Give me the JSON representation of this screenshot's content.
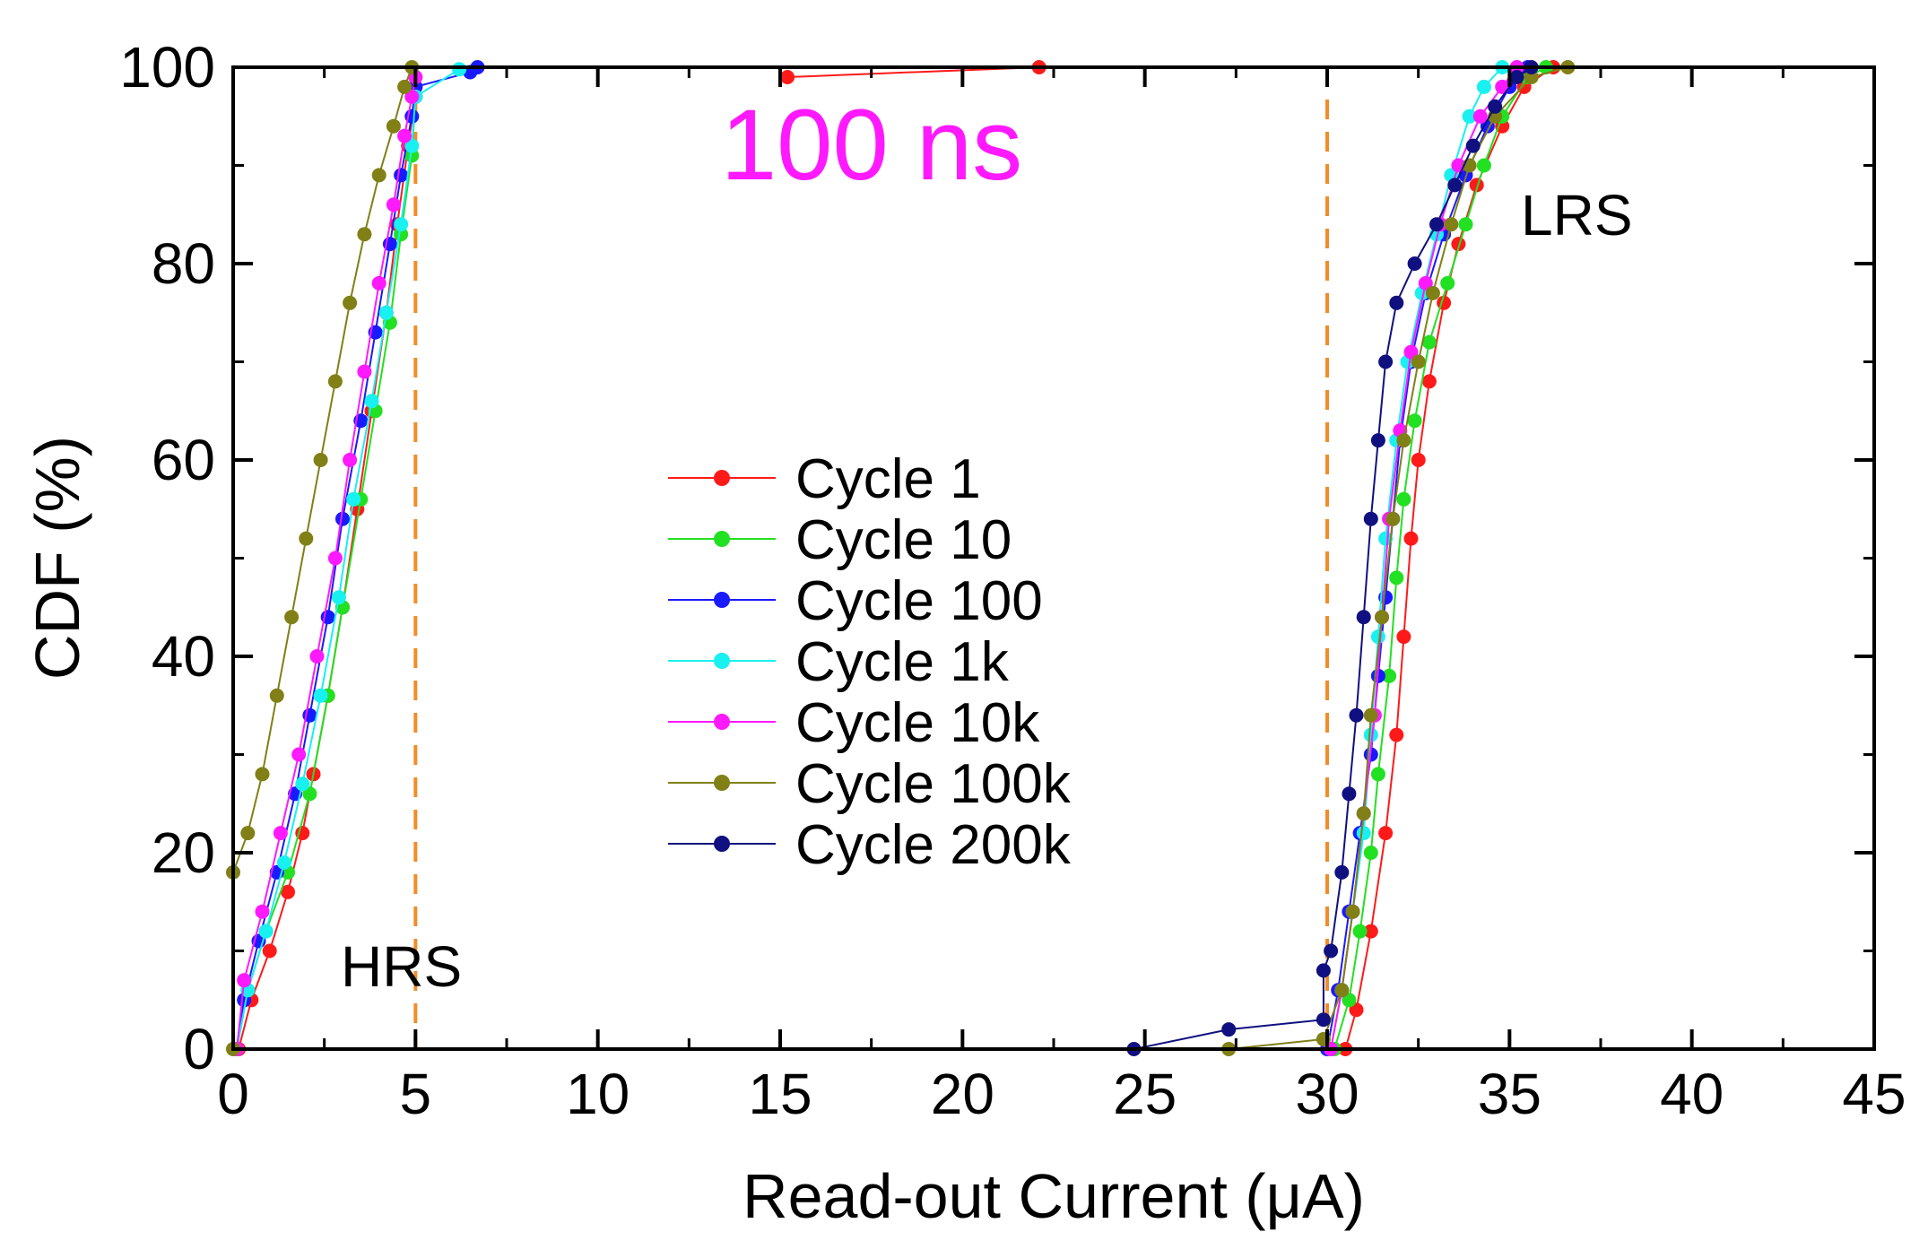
{
  "chart_data": {
    "type": "line",
    "title": "",
    "xlabel": "Read-out Current (μA)",
    "ylabel": "CDF (%)",
    "xlim": [
      0,
      45
    ],
    "ylim": [
      0,
      100
    ],
    "xticks": [
      0,
      5,
      10,
      15,
      20,
      25,
      30,
      35,
      40,
      45
    ],
    "yticks": [
      0,
      20,
      40,
      60,
      80,
      100
    ],
    "xtick_labels": [
      "0",
      "5",
      "10",
      "15",
      "20",
      "25",
      "30",
      "35",
      "40",
      "45"
    ],
    "ytick_labels": [
      "0",
      "20",
      "40",
      "60",
      "80",
      "100"
    ],
    "grid": false,
    "legend_position": "center",
    "annotations": {
      "pulse": "100 ns",
      "hrs": "HRS",
      "lrs": "LRS"
    },
    "reference_lines": [
      {
        "x": 5,
        "style": "dashed",
        "color": "#f28c28"
      },
      {
        "x": 30,
        "style": "dashed",
        "color": "#f28c28"
      }
    ],
    "series": [
      {
        "name": "Cycle 1",
        "color": "#ff1a1a",
        "hrs": [
          [
            0.15,
            0
          ],
          [
            0.5,
            5
          ],
          [
            1.0,
            10
          ],
          [
            1.5,
            16
          ],
          [
            1.9,
            22
          ],
          [
            2.2,
            28
          ],
          [
            2.6,
            36
          ],
          [
            3.0,
            45
          ],
          [
            3.4,
            55
          ],
          [
            3.8,
            65
          ],
          [
            4.2,
            75
          ],
          [
            4.5,
            84
          ],
          [
            4.8,
            92
          ],
          [
            5.0,
            97
          ],
          [
            5.0,
            98
          ]
        ],
        "lrs": [
          [
            15.2,
            99
          ],
          [
            22.1,
            100
          ]
        ],
        "lrs_main": [
          [
            30.5,
            0
          ],
          [
            30.8,
            4
          ],
          [
            31.2,
            12
          ],
          [
            31.6,
            22
          ],
          [
            31.9,
            32
          ],
          [
            32.1,
            42
          ],
          [
            32.3,
            52
          ],
          [
            32.5,
            60
          ],
          [
            32.8,
            68
          ],
          [
            33.2,
            76
          ],
          [
            33.6,
            82
          ],
          [
            34.1,
            88
          ],
          [
            34.8,
            94
          ],
          [
            35.4,
            98
          ],
          [
            36.2,
            100
          ]
        ]
      },
      {
        "name": "Cycle 10",
        "color": "#22e022",
        "hrs": [
          [
            0.1,
            0
          ],
          [
            0.4,
            6
          ],
          [
            0.9,
            12
          ],
          [
            1.5,
            18
          ],
          [
            2.1,
            26
          ],
          [
            2.6,
            36
          ],
          [
            3.0,
            45
          ],
          [
            3.5,
            56
          ],
          [
            3.9,
            65
          ],
          [
            4.3,
            74
          ],
          [
            4.6,
            83
          ],
          [
            4.9,
            91
          ],
          [
            5.0,
            97
          ],
          [
            5.0,
            99
          ]
        ],
        "lrs": [
          [
            30.2,
            0
          ],
          [
            30.6,
            5
          ],
          [
            30.9,
            12
          ],
          [
            31.2,
            20
          ],
          [
            31.4,
            28
          ],
          [
            31.7,
            38
          ],
          [
            31.9,
            48
          ],
          [
            32.1,
            56
          ],
          [
            32.4,
            64
          ],
          [
            32.8,
            72
          ],
          [
            33.3,
            78
          ],
          [
            33.8,
            84
          ],
          [
            34.3,
            90
          ],
          [
            34.8,
            95
          ],
          [
            35.5,
            99
          ],
          [
            36.0,
            100
          ]
        ]
      },
      {
        "name": "Cycle 100",
        "color": "#1a1aff",
        "hrs": [
          [
            0.1,
            0
          ],
          [
            0.3,
            5
          ],
          [
            0.7,
            11
          ],
          [
            1.2,
            18
          ],
          [
            1.7,
            26
          ],
          [
            2.1,
            34
          ],
          [
            2.6,
            44
          ],
          [
            3.0,
            54
          ],
          [
            3.5,
            64
          ],
          [
            3.9,
            73
          ],
          [
            4.3,
            82
          ],
          [
            4.6,
            89
          ],
          [
            4.9,
            95
          ],
          [
            5.0,
            98
          ],
          [
            6.5,
            99.5
          ],
          [
            6.7,
            100
          ]
        ],
        "lrs": [
          [
            30.0,
            0
          ],
          [
            30.3,
            6
          ],
          [
            30.6,
            14
          ],
          [
            30.9,
            22
          ],
          [
            31.2,
            30
          ],
          [
            31.4,
            38
          ],
          [
            31.6,
            46
          ],
          [
            31.8,
            54
          ],
          [
            32.0,
            62
          ],
          [
            32.3,
            70
          ],
          [
            32.7,
            77
          ],
          [
            33.2,
            83
          ],
          [
            33.8,
            89
          ],
          [
            34.4,
            94
          ],
          [
            35.0,
            98
          ],
          [
            35.5,
            100
          ]
        ]
      },
      {
        "name": "Cycle 1k",
        "color": "#19f0f0",
        "hrs": [
          [
            0.1,
            0
          ],
          [
            0.4,
            6
          ],
          [
            0.9,
            12
          ],
          [
            1.4,
            19
          ],
          [
            1.9,
            27
          ],
          [
            2.4,
            36
          ],
          [
            2.9,
            46
          ],
          [
            3.3,
            56
          ],
          [
            3.8,
            66
          ],
          [
            4.2,
            75
          ],
          [
            4.6,
            84
          ],
          [
            4.9,
            92
          ],
          [
            5.0,
            97
          ],
          [
            6.2,
            99.8
          ]
        ],
        "lrs": [
          [
            30.1,
            0
          ],
          [
            30.4,
            6
          ],
          [
            30.7,
            14
          ],
          [
            31.0,
            22
          ],
          [
            31.2,
            32
          ],
          [
            31.4,
            42
          ],
          [
            31.6,
            52
          ],
          [
            31.9,
            62
          ],
          [
            32.2,
            70
          ],
          [
            32.6,
            77
          ],
          [
            33.0,
            83
          ],
          [
            33.4,
            89
          ],
          [
            33.9,
            95
          ],
          [
            34.3,
            98
          ],
          [
            34.8,
            100
          ]
        ]
      },
      {
        "name": "Cycle 10k",
        "color": "#ff19ff",
        "hrs": [
          [
            0.1,
            0
          ],
          [
            0.3,
            7
          ],
          [
            0.8,
            14
          ],
          [
            1.3,
            22
          ],
          [
            1.8,
            30
          ],
          [
            2.3,
            40
          ],
          [
            2.8,
            50
          ],
          [
            3.2,
            60
          ],
          [
            3.6,
            69
          ],
          [
            4.0,
            78
          ],
          [
            4.4,
            86
          ],
          [
            4.7,
            93
          ],
          [
            4.9,
            97
          ],
          [
            5.0,
            99
          ]
        ],
        "lrs": [
          [
            30.1,
            0
          ],
          [
            30.4,
            6
          ],
          [
            30.7,
            14
          ],
          [
            31.0,
            24
          ],
          [
            31.3,
            34
          ],
          [
            31.5,
            44
          ],
          [
            31.7,
            54
          ],
          [
            32.0,
            63
          ],
          [
            32.3,
            71
          ],
          [
            32.7,
            78
          ],
          [
            33.1,
            84
          ],
          [
            33.6,
            90
          ],
          [
            34.2,
            95
          ],
          [
            34.8,
            98
          ],
          [
            35.2,
            100
          ]
        ]
      },
      {
        "name": "Cycle 100k",
        "color": "#808016",
        "hrs": [
          [
            0.0,
            0
          ],
          [
            0.0,
            18
          ],
          [
            0.4,
            22
          ],
          [
            0.8,
            28
          ],
          [
            1.2,
            36
          ],
          [
            1.6,
            44
          ],
          [
            2.0,
            52
          ],
          [
            2.4,
            60
          ],
          [
            2.8,
            68
          ],
          [
            3.2,
            76
          ],
          [
            3.6,
            83
          ],
          [
            4.0,
            89
          ],
          [
            4.4,
            94
          ],
          [
            4.7,
            98
          ],
          [
            4.9,
            100
          ]
        ],
        "lrs": [
          [
            27.3,
            0
          ],
          [
            29.9,
            1
          ],
          [
            30.4,
            6
          ],
          [
            30.7,
            14
          ],
          [
            31.0,
            24
          ],
          [
            31.2,
            34
          ],
          [
            31.5,
            44
          ],
          [
            31.8,
            54
          ],
          [
            32.1,
            62
          ],
          [
            32.5,
            70
          ],
          [
            32.9,
            77
          ],
          [
            33.4,
            84
          ],
          [
            33.9,
            90
          ],
          [
            34.6,
            95
          ],
          [
            35.6,
            99
          ],
          [
            36.6,
            100
          ]
        ]
      },
      {
        "name": "Cycle 200k",
        "color": "#101080",
        "hrs": [],
        "lrs": [
          [
            24.7,
            0
          ],
          [
            27.3,
            2
          ],
          [
            29.9,
            3
          ],
          [
            29.9,
            8
          ],
          [
            30.1,
            10
          ],
          [
            30.4,
            18
          ],
          [
            30.6,
            26
          ],
          [
            30.8,
            34
          ],
          [
            31.0,
            44
          ],
          [
            31.2,
            54
          ],
          [
            31.4,
            62
          ],
          [
            31.6,
            70
          ],
          [
            31.9,
            76
          ],
          [
            32.4,
            80
          ],
          [
            33.0,
            84
          ],
          [
            33.5,
            88
          ],
          [
            34.0,
            92
          ],
          [
            34.6,
            96
          ],
          [
            35.2,
            99
          ],
          [
            35.6,
            100
          ]
        ]
      }
    ]
  }
}
